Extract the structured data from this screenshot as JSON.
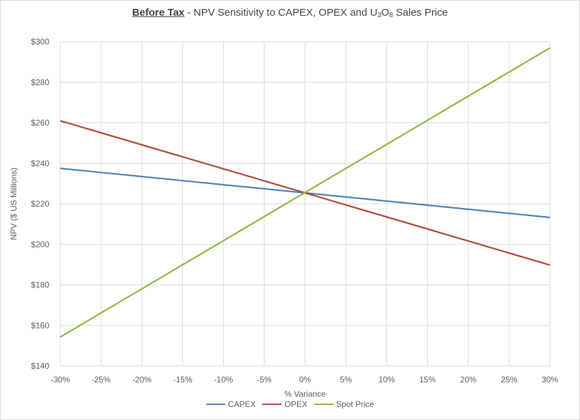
{
  "title": {
    "bold": "Before Tax",
    "sep": " - ",
    "main": "NPV Sensitivity to CAPEX, OPEX and U",
    "sub1": "3",
    "mid": "O",
    "sub2": "8",
    "end": " Sales Price"
  },
  "chart_data": {
    "type": "line",
    "title": "Before Tax - NPV Sensitivity to CAPEX, OPEX and U3O8 Sales Price",
    "xlabel": "% Variance",
    "ylabel": "NPV ($ US Millions)",
    "x": [
      -30,
      30
    ],
    "x_tick_labels": [
      "-30%",
      "-25%",
      "-20%",
      "-15%",
      "-10%",
      "-5%",
      "0%",
      "5%",
      "10%",
      "15%",
      "20%",
      "25%",
      "30%"
    ],
    "y_tick_labels": [
      "$140",
      "$160",
      "$180",
      "$200",
      "$220",
      "$240",
      "$260",
      "$280",
      "$300"
    ],
    "xlim": [
      -30,
      30
    ],
    "ylim": [
      140,
      300
    ],
    "grid": true,
    "legend_position": "bottom",
    "series": [
      {
        "name": "CAPEX",
        "color": "#4a7ebb",
        "values": [
          237.5,
          213.3
        ]
      },
      {
        "name": "OPEX",
        "color": "#a9432d",
        "values": [
          261.0,
          189.8
        ]
      },
      {
        "name": "Spot Price",
        "color": "#86b63e",
        "values": [
          154.3,
          296.9
        ]
      }
    ]
  }
}
